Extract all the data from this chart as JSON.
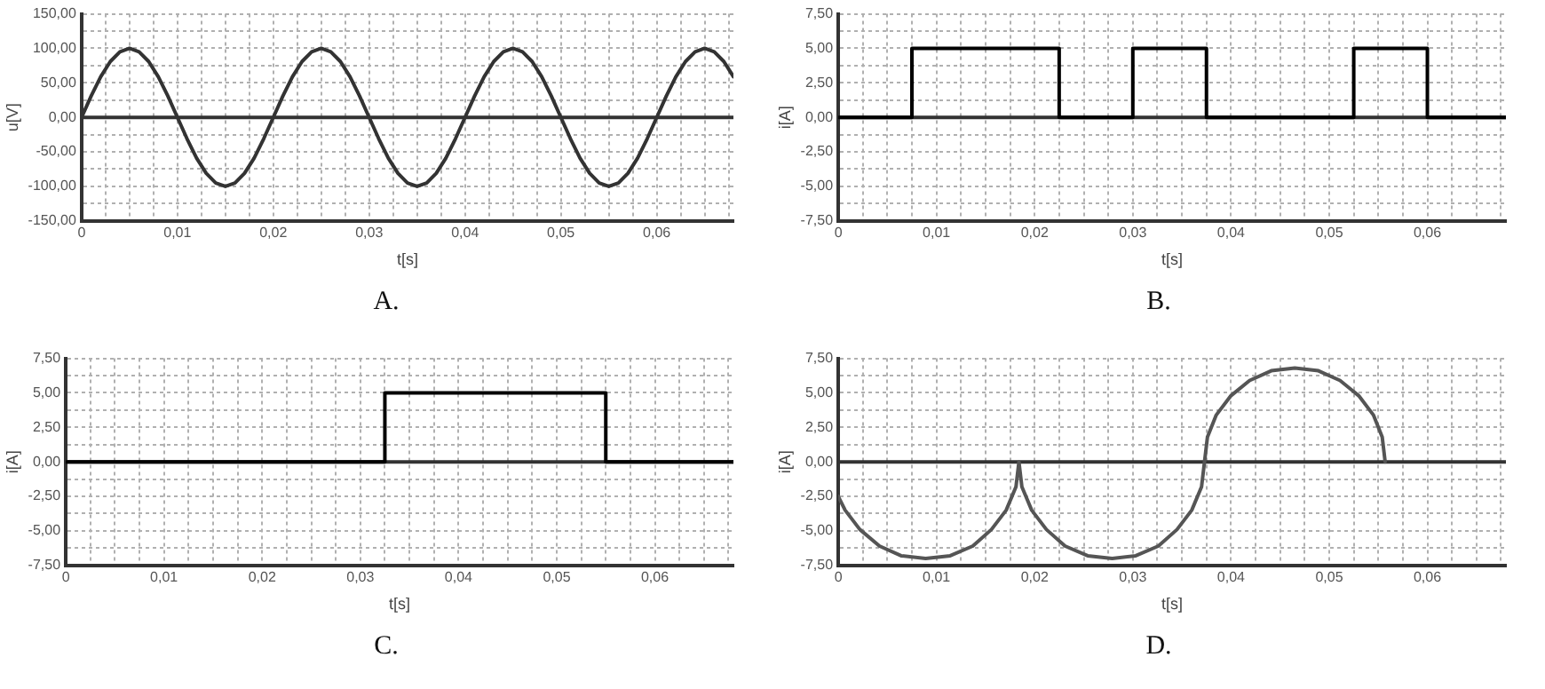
{
  "chart_data": [
    {
      "type": "line",
      "xlabel": "t[s]",
      "ylabel": "u[V]",
      "annotations": [
        "A."
      ],
      "ref_lines": [
        {
          "axis": "y",
          "value": 0,
          "color": "#333333"
        }
      ],
      "grid": true,
      "marker": "none",
      "xlim": [
        0,
        0.068
      ],
      "ylim": [
        -150,
        150
      ],
      "xticks": [
        {
          "value": 0,
          "label": "0"
        },
        {
          "value": 0.0025,
          "label": null
        },
        {
          "value": 0.005,
          "label": null
        },
        {
          "value": 0.0075,
          "label": null
        },
        {
          "value": 0.01,
          "label": "0,01"
        },
        {
          "value": 0.0125,
          "label": null
        },
        {
          "value": 0.015,
          "label": null
        },
        {
          "value": 0.0175,
          "label": null
        },
        {
          "value": 0.02,
          "label": "0,02"
        },
        {
          "value": 0.0225,
          "label": null
        },
        {
          "value": 0.025,
          "label": null
        },
        {
          "value": 0.0275,
          "label": null
        },
        {
          "value": 0.03,
          "label": "0,03"
        },
        {
          "value": 0.0325,
          "label": null
        },
        {
          "value": 0.035,
          "label": null
        },
        {
          "value": 0.0375,
          "label": null
        },
        {
          "value": 0.04,
          "label": "0,04"
        },
        {
          "value": 0.0425,
          "label": null
        },
        {
          "value": 0.045,
          "label": null
        },
        {
          "value": 0.0475,
          "label": null
        },
        {
          "value": 0.05,
          "label": "0,05"
        },
        {
          "value": 0.0525,
          "label": null
        },
        {
          "value": 0.055,
          "label": null
        },
        {
          "value": 0.0575,
          "label": null
        },
        {
          "value": 0.06,
          "label": "0,06"
        },
        {
          "value": 0.0625,
          "label": null
        },
        {
          "value": 0.065,
          "label": null
        },
        {
          "value": 0.0675,
          "label": null
        }
      ],
      "yticks": [
        {
          "value": -150,
          "label": "-150,00"
        },
        {
          "value": -125,
          "label": null
        },
        {
          "value": -100,
          "label": "-100,00"
        },
        {
          "value": -75,
          "label": null
        },
        {
          "value": -50,
          "label": "-50,00"
        },
        {
          "value": -25,
          "label": null
        },
        {
          "value": 0,
          "label": "0,00"
        },
        {
          "value": 25,
          "label": null
        },
        {
          "value": 50,
          "label": "50,00"
        },
        {
          "value": 75,
          "label": null
        },
        {
          "value": 100,
          "label": "100,00"
        },
        {
          "value": 125,
          "label": null
        },
        {
          "value": 150,
          "label": "150,00"
        }
      ],
      "series": [
        {
          "color": "#333333",
          "x": [
            0,
            0.001,
            0.002,
            0.003,
            0.004,
            0.005,
            0.006,
            0.007,
            0.008,
            0.009,
            0.01,
            0.011,
            0.012,
            0.013,
            0.014,
            0.015,
            0.016,
            0.017,
            0.018,
            0.019,
            0.02,
            0.021,
            0.022,
            0.023,
            0.024,
            0.025,
            0.026,
            0.027,
            0.028,
            0.029,
            0.03,
            0.031,
            0.032,
            0.033,
            0.034,
            0.035,
            0.036,
            0.037,
            0.038,
            0.039,
            0.04,
            0.041,
            0.042,
            0.043,
            0.044,
            0.045,
            0.046,
            0.047,
            0.048,
            0.049,
            0.05,
            0.051,
            0.052,
            0.053,
            0.054,
            0.055,
            0.056,
            0.057,
            0.058,
            0.059,
            0.06,
            0.061,
            0.062,
            0.063,
            0.064,
            0.065,
            0.066,
            0.067,
            0.068
          ],
          "values": [
            0,
            31,
            59,
            81,
            95,
            100,
            95,
            81,
            59,
            31,
            0,
            -31,
            -59,
            -81,
            -95,
            -100,
            -95,
            -81,
            -59,
            -31,
            0,
            31,
            59,
            81,
            95,
            100,
            95,
            81,
            59,
            31,
            0,
            -31,
            -59,
            -81,
            -95,
            -100,
            -95,
            -81,
            -59,
            -31,
            0,
            31,
            59,
            81,
            95,
            100,
            95,
            81,
            59,
            31,
            0,
            -31,
            -59,
            -81,
            -95,
            -100,
            -95,
            -81,
            -59,
            -31,
            0,
            31,
            59,
            81,
            95,
            100,
            95,
            81,
            59
          ]
        }
      ]
    },
    {
      "type": "line",
      "xlabel": "t[s]",
      "ylabel": "i[A]",
      "annotations": [
        "B."
      ],
      "ref_lines": [
        {
          "axis": "y",
          "value": 0,
          "color": "#333333"
        }
      ],
      "grid": true,
      "marker": "none",
      "xlim": [
        0,
        0.068
      ],
      "ylim": [
        -7.5,
        7.5
      ],
      "xticks": [
        {
          "value": 0,
          "label": "0"
        },
        {
          "value": 0.0025,
          "label": null
        },
        {
          "value": 0.005,
          "label": null
        },
        {
          "value": 0.0075,
          "label": null
        },
        {
          "value": 0.01,
          "label": "0,01"
        },
        {
          "value": 0.0125,
          "label": null
        },
        {
          "value": 0.015,
          "label": null
        },
        {
          "value": 0.0175,
          "label": null
        },
        {
          "value": 0.02,
          "label": "0,02"
        },
        {
          "value": 0.0225,
          "label": null
        },
        {
          "value": 0.025,
          "label": null
        },
        {
          "value": 0.0275,
          "label": null
        },
        {
          "value": 0.03,
          "label": "0,03"
        },
        {
          "value": 0.0325,
          "label": null
        },
        {
          "value": 0.035,
          "label": null
        },
        {
          "value": 0.0375,
          "label": null
        },
        {
          "value": 0.04,
          "label": "0,04"
        },
        {
          "value": 0.0425,
          "label": null
        },
        {
          "value": 0.045,
          "label": null
        },
        {
          "value": 0.0475,
          "label": null
        },
        {
          "value": 0.05,
          "label": "0,05"
        },
        {
          "value": 0.0525,
          "label": null
        },
        {
          "value": 0.055,
          "label": null
        },
        {
          "value": 0.0575,
          "label": null
        },
        {
          "value": 0.06,
          "label": "0,06"
        },
        {
          "value": 0.0625,
          "label": null
        },
        {
          "value": 0.065,
          "label": null
        },
        {
          "value": 0.0675,
          "label": null
        }
      ],
      "yticks": [
        {
          "value": -7.5,
          "label": "-7,50"
        },
        {
          "value": -6.25,
          "label": null
        },
        {
          "value": -5,
          "label": "-5,00"
        },
        {
          "value": -3.75,
          "label": null
        },
        {
          "value": -2.5,
          "label": "-2,50"
        },
        {
          "value": -1.25,
          "label": null
        },
        {
          "value": 0,
          "label": "0,00"
        },
        {
          "value": 1.25,
          "label": null
        },
        {
          "value": 2.5,
          "label": "2,50"
        },
        {
          "value": 3.75,
          "label": null
        },
        {
          "value": 5,
          "label": "5,00"
        },
        {
          "value": 6.25,
          "label": null
        },
        {
          "value": 7.5,
          "label": "7,50"
        }
      ],
      "series": [
        {
          "color": "#000000",
          "x": [
            0,
            0.0075,
            0.0075,
            0.0225,
            0.0225,
            0.03,
            0.03,
            0.0375,
            0.0375,
            0.0525,
            0.0525,
            0.06,
            0.06,
            0.068
          ],
          "values": [
            0,
            0,
            5,
            5,
            0,
            0,
            5,
            5,
            0,
            0,
            5,
            5,
            0,
            0
          ]
        }
      ]
    },
    {
      "type": "line",
      "xlabel": "t[s]",
      "ylabel": "i[A]",
      "annotations": [
        "C."
      ],
      "ref_lines": [
        {
          "axis": "y",
          "value": 0,
          "color": "#333333"
        }
      ],
      "grid": true,
      "marker": "none",
      "xlim": [
        0,
        0.068
      ],
      "ylim": [
        -7.5,
        7.5
      ],
      "xticks": [
        {
          "value": 0,
          "label": "0"
        },
        {
          "value": 0.0025,
          "label": null
        },
        {
          "value": 0.005,
          "label": null
        },
        {
          "value": 0.0075,
          "label": null
        },
        {
          "value": 0.01,
          "label": "0,01"
        },
        {
          "value": 0.0125,
          "label": null
        },
        {
          "value": 0.015,
          "label": null
        },
        {
          "value": 0.0175,
          "label": null
        },
        {
          "value": 0.02,
          "label": "0,02"
        },
        {
          "value": 0.0225,
          "label": null
        },
        {
          "value": 0.025,
          "label": null
        },
        {
          "value": 0.0275,
          "label": null
        },
        {
          "value": 0.03,
          "label": "0,03"
        },
        {
          "value": 0.0325,
          "label": null
        },
        {
          "value": 0.035,
          "label": null
        },
        {
          "value": 0.0375,
          "label": null
        },
        {
          "value": 0.04,
          "label": "0,04"
        },
        {
          "value": 0.0425,
          "label": null
        },
        {
          "value": 0.045,
          "label": null
        },
        {
          "value": 0.0475,
          "label": null
        },
        {
          "value": 0.05,
          "label": "0,05"
        },
        {
          "value": 0.0525,
          "label": null
        },
        {
          "value": 0.055,
          "label": null
        },
        {
          "value": 0.0575,
          "label": null
        },
        {
          "value": 0.06,
          "label": "0,06"
        },
        {
          "value": 0.0625,
          "label": null
        },
        {
          "value": 0.065,
          "label": null
        },
        {
          "value": 0.0675,
          "label": null
        }
      ],
      "yticks": [
        {
          "value": -7.5,
          "label": "-7,50"
        },
        {
          "value": -6.25,
          "label": null
        },
        {
          "value": -5,
          "label": "-5,00"
        },
        {
          "value": -3.75,
          "label": null
        },
        {
          "value": -2.5,
          "label": "-2,50"
        },
        {
          "value": -1.25,
          "label": null
        },
        {
          "value": 0,
          "label": "0,00"
        },
        {
          "value": 1.25,
          "label": null
        },
        {
          "value": 2.5,
          "label": "2,50"
        },
        {
          "value": 3.75,
          "label": null
        },
        {
          "value": 5,
          "label": "5,00"
        },
        {
          "value": 6.25,
          "label": null
        },
        {
          "value": 7.5,
          "label": "7,50"
        }
      ],
      "series": [
        {
          "color": "#000000",
          "x": [
            0,
            0.0325,
            0.0325,
            0.055,
            0.055,
            0.068
          ],
          "values": [
            0,
            0,
            5,
            5,
            0,
            0
          ]
        }
      ]
    },
    {
      "type": "line",
      "xlabel": "t[s]",
      "ylabel": "i[A]",
      "annotations": [
        "D."
      ],
      "ref_lines": [
        {
          "axis": "y",
          "value": 0,
          "color": "#333333"
        }
      ],
      "grid": true,
      "marker": "none",
      "xlim": [
        0,
        0.068
      ],
      "ylim": [
        -7.5,
        7.5
      ],
      "xticks": [
        {
          "value": 0,
          "label": "0"
        },
        {
          "value": 0.0025,
          "label": null
        },
        {
          "value": 0.005,
          "label": null
        },
        {
          "value": 0.0075,
          "label": null
        },
        {
          "value": 0.01,
          "label": "0,01"
        },
        {
          "value": 0.0125,
          "label": null
        },
        {
          "value": 0.015,
          "label": null
        },
        {
          "value": 0.0175,
          "label": null
        },
        {
          "value": 0.02,
          "label": "0,02"
        },
        {
          "value": 0.0225,
          "label": null
        },
        {
          "value": 0.025,
          "label": null
        },
        {
          "value": 0.0275,
          "label": null
        },
        {
          "value": 0.03,
          "label": "0,03"
        },
        {
          "value": 0.0325,
          "label": null
        },
        {
          "value": 0.035,
          "label": null
        },
        {
          "value": 0.0375,
          "label": null
        },
        {
          "value": 0.04,
          "label": "0,04"
        },
        {
          "value": 0.0425,
          "label": null
        },
        {
          "value": 0.045,
          "label": null
        },
        {
          "value": 0.0475,
          "label": null
        },
        {
          "value": 0.05,
          "label": "0,05"
        },
        {
          "value": 0.0525,
          "label": null
        },
        {
          "value": 0.055,
          "label": null
        },
        {
          "value": 0.0575,
          "label": null
        },
        {
          "value": 0.06,
          "label": "0,06"
        },
        {
          "value": 0.0625,
          "label": null
        },
        {
          "value": 0.065,
          "label": null
        },
        {
          "value": 0.0675,
          "label": null
        }
      ],
      "yticks": [
        {
          "value": -7.5,
          "label": "-7,50"
        },
        {
          "value": -6.25,
          "label": null
        },
        {
          "value": -5,
          "label": "-5,00"
        },
        {
          "value": -3.75,
          "label": null
        },
        {
          "value": -2.5,
          "label": "-2,50"
        },
        {
          "value": -1.25,
          "label": null
        },
        {
          "value": 0,
          "label": "0,00"
        },
        {
          "value": 1.25,
          "label": null
        },
        {
          "value": 2.5,
          "label": "2,50"
        },
        {
          "value": 3.75,
          "label": null
        },
        {
          "value": 5,
          "label": "5,00"
        },
        {
          "value": 6.25,
          "label": null
        },
        {
          "value": 7.5,
          "label": "7,50"
        }
      ],
      "series": [
        {
          "color": "#555555",
          "x": [
            0,
            0.0007,
            0.0022,
            0.0042,
            0.0064,
            0.0089,
            0.0114,
            0.0137,
            0.0156,
            0.0171,
            0.0181,
            0.0184,
            0.0187,
            0.0197,
            0.0212,
            0.0231,
            0.0254,
            0.0279,
            0.0303,
            0.0326,
            0.0345,
            0.036,
            0.037,
            0.0373,
            0.0376,
            0.0385,
            0.04,
            0.0419,
            0.0441,
            0.0465,
            0.0489,
            0.0511,
            0.053,
            0.0545,
            0.0554,
            0.0557
          ],
          "values": [
            -2.5,
            -3.5,
            -4.9,
            -6.1,
            -6.8,
            -7,
            -6.8,
            -6.1,
            -4.9,
            -3.5,
            -1.8,
            0,
            -1.8,
            -3.5,
            -4.9,
            -6.1,
            -6.8,
            -7,
            -6.8,
            -6.1,
            -4.9,
            -3.5,
            -1.8,
            0,
            1.8,
            3.4,
            4.8,
            5.9,
            6.6,
            6.8,
            6.6,
            5.9,
            4.8,
            3.4,
            1.8,
            0
          ]
        }
      ]
    }
  ]
}
